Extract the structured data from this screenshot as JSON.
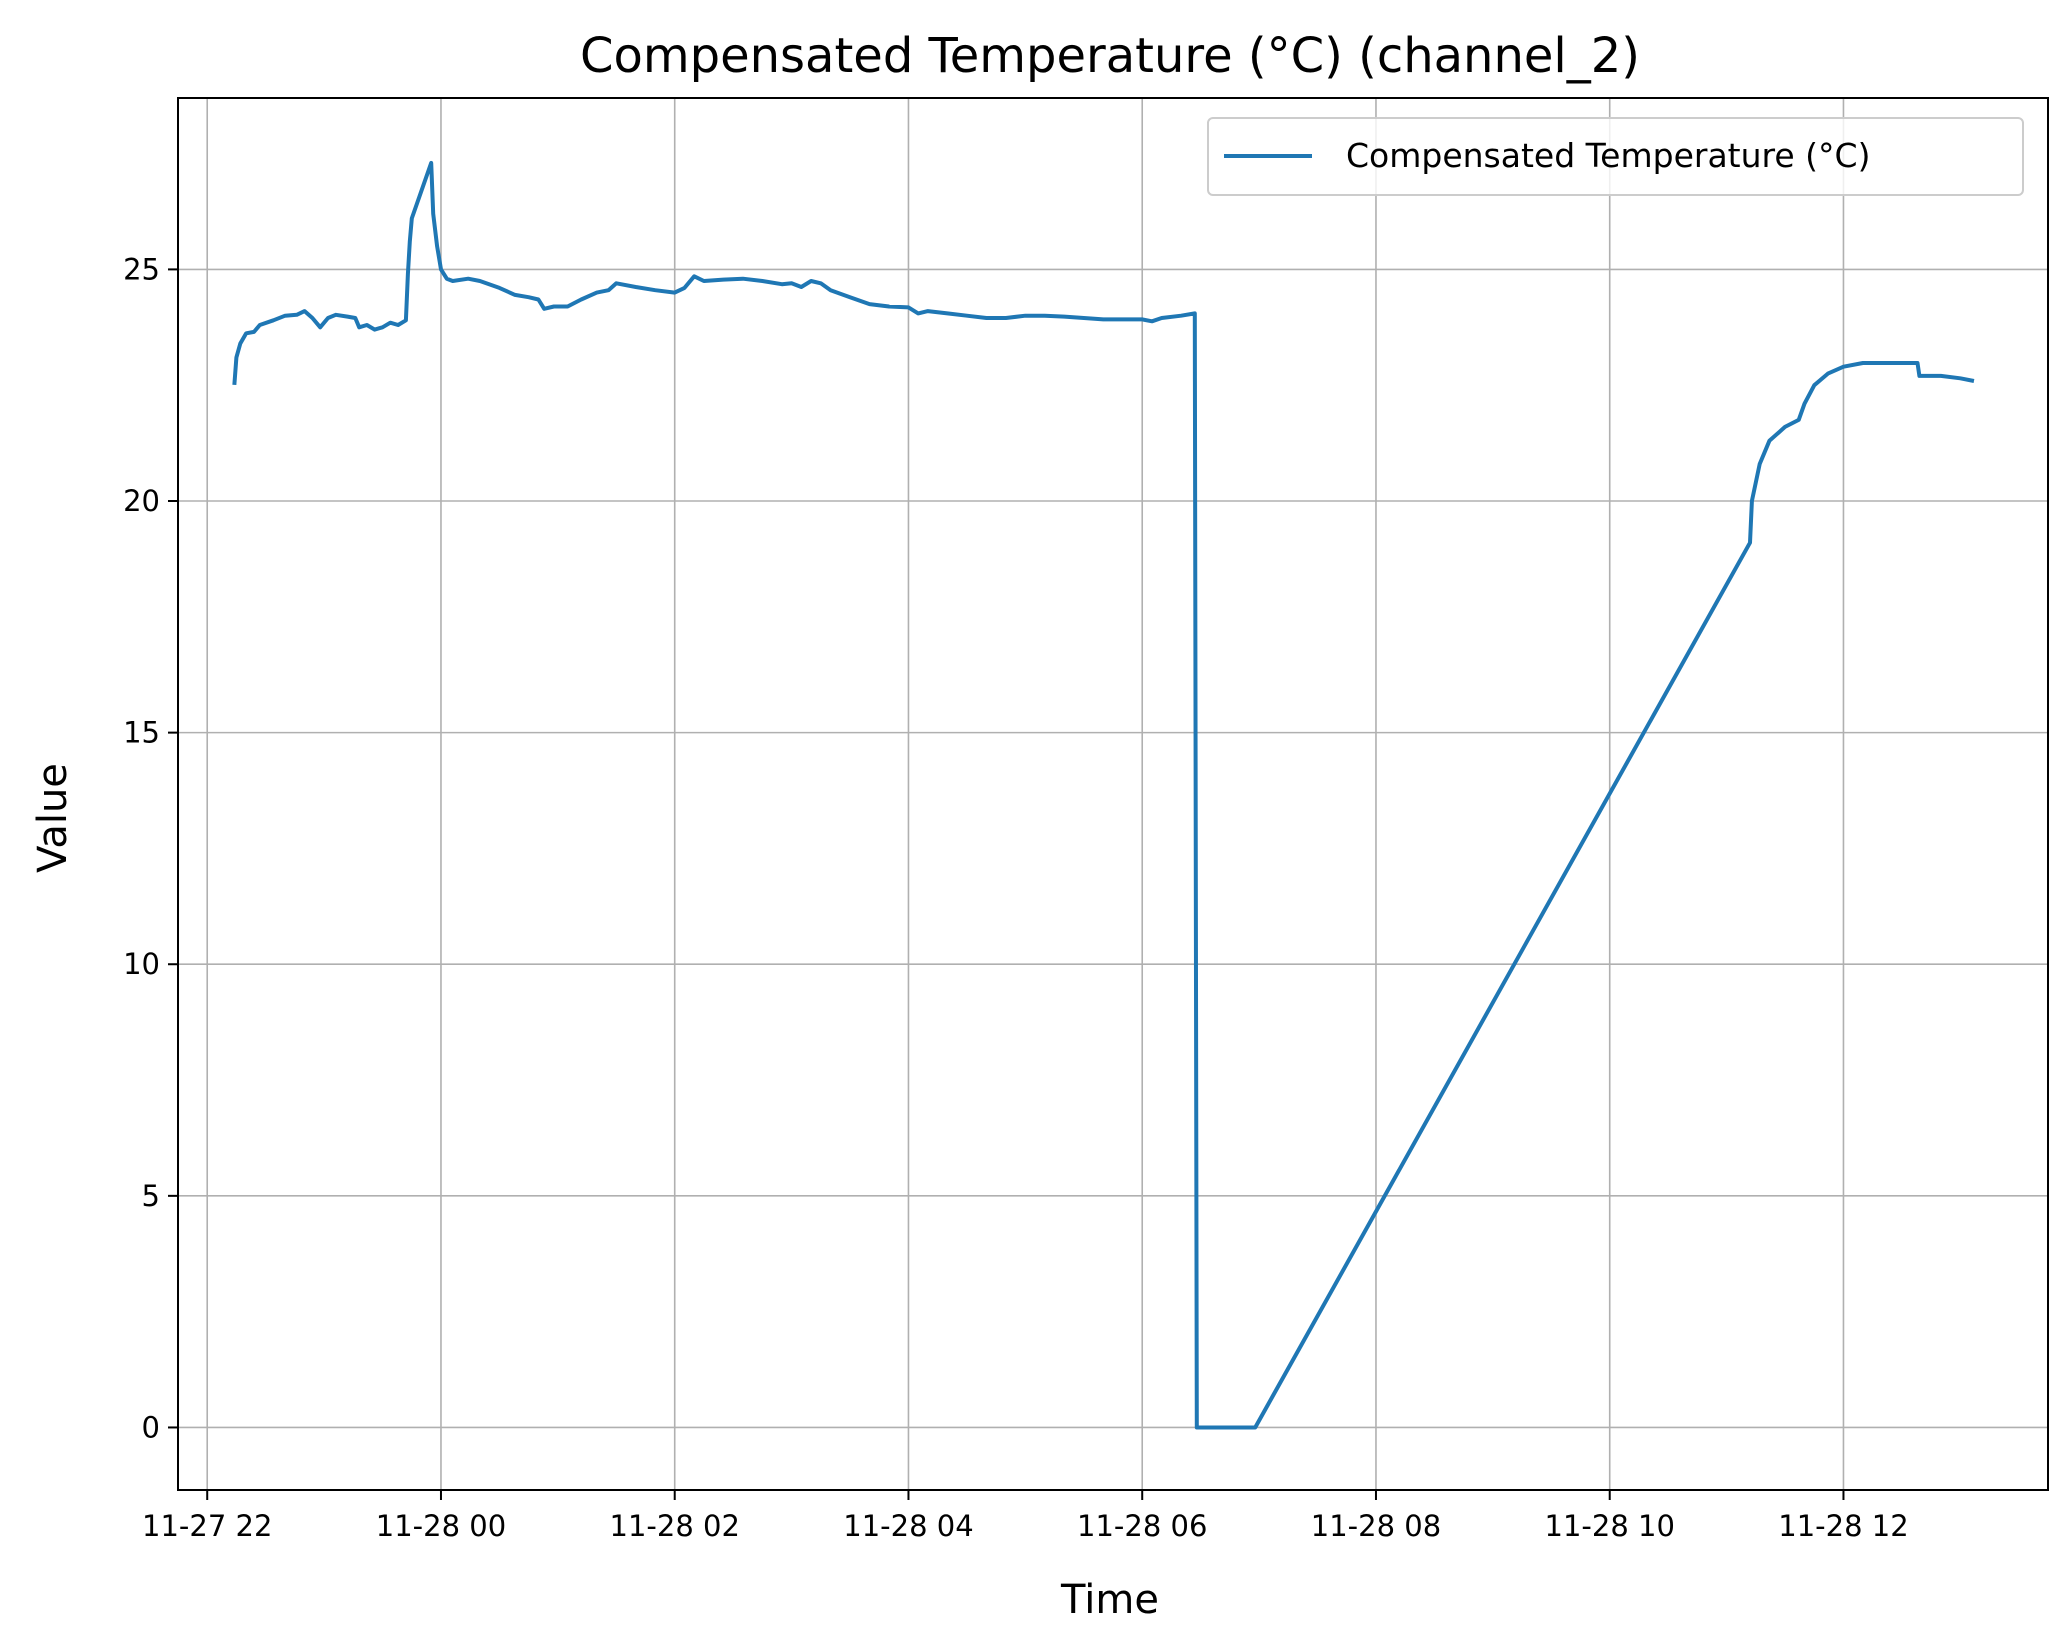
{
  "chart_data": {
    "type": "line",
    "title": "Compensated Temperature (°C) (channel_2)",
    "xlabel": "Time",
    "ylabel": "Value",
    "xlim": [
      "2024-11-27 21:45",
      "2024-11-28 13:45"
    ],
    "ylim": [
      -1.35,
      28.7
    ],
    "x_ticks": [
      {
        "value": "2024-11-27 22:00",
        "label": "11-27 22"
      },
      {
        "value": "2024-11-28 00:00",
        "label": "11-28 00"
      },
      {
        "value": "2024-11-28 02:00",
        "label": "11-28 02"
      },
      {
        "value": "2024-11-28 04:00",
        "label": "11-28 04"
      },
      {
        "value": "2024-11-28 06:00",
        "label": "11-28 06"
      },
      {
        "value": "2024-11-28 08:00",
        "label": "11-28 08"
      },
      {
        "value": "2024-11-28 10:00",
        "label": "11-28 10"
      },
      {
        "value": "2024-11-28 12:00",
        "label": "11-28 12"
      }
    ],
    "y_ticks": [
      {
        "value": 0,
        "label": "0"
      },
      {
        "value": 5,
        "label": "5"
      },
      {
        "value": 10,
        "label": "10"
      },
      {
        "value": 15,
        "label": "15"
      },
      {
        "value": 20,
        "label": "20"
      },
      {
        "value": 25,
        "label": "25"
      }
    ],
    "grid": true,
    "legend_position": "top-right",
    "series": [
      {
        "name": "Compensated Temperature (°C)",
        "color": "#1f77b4",
        "points": [
          [
            "2024-11-27 22:14",
            22.55
          ],
          [
            "2024-11-27 22:15",
            23.1
          ],
          [
            "2024-11-27 22:17",
            23.4
          ],
          [
            "2024-11-27 22:20",
            23.62
          ],
          [
            "2024-11-27 22:24",
            23.65
          ],
          [
            "2024-11-27 22:27",
            23.8
          ],
          [
            "2024-11-27 22:34",
            23.9
          ],
          [
            "2024-11-27 22:40",
            24.0
          ],
          [
            "2024-11-27 22:46",
            24.02
          ],
          [
            "2024-11-27 22:50",
            24.1
          ],
          [
            "2024-11-27 22:54",
            23.95
          ],
          [
            "2024-11-27 22:58",
            23.75
          ],
          [
            "2024-11-27 23:02",
            23.95
          ],
          [
            "2024-11-27 23:06",
            24.02
          ],
          [
            "2024-11-27 23:12",
            23.98
          ],
          [
            "2024-11-27 23:16",
            23.95
          ],
          [
            "2024-11-27 23:18",
            23.75
          ],
          [
            "2024-11-27 23:22",
            23.8
          ],
          [
            "2024-11-27 23:26",
            23.7
          ],
          [
            "2024-11-27 23:30",
            23.75
          ],
          [
            "2024-11-27 23:34",
            23.85
          ],
          [
            "2024-11-27 23:38",
            23.8
          ],
          [
            "2024-11-27 23:42",
            23.9
          ],
          [
            "2024-11-27 23:43",
            24.9
          ],
          [
            "2024-11-27 23:44",
            25.6
          ],
          [
            "2024-11-27 23:45",
            26.1
          ],
          [
            "2024-11-27 23:55",
            27.3
          ],
          [
            "2024-11-27 23:56",
            26.2
          ],
          [
            "2024-11-27 23:58",
            25.5
          ],
          [
            "2024-11-28 00:00",
            25.0
          ],
          [
            "2024-11-28 00:03",
            24.8
          ],
          [
            "2024-11-28 00:06",
            24.75
          ],
          [
            "2024-11-28 00:14",
            24.8
          ],
          [
            "2024-11-28 00:20",
            24.75
          ],
          [
            "2024-11-28 00:30",
            24.6
          ],
          [
            "2024-11-28 00:38",
            24.45
          ],
          [
            "2024-11-28 00:45",
            24.4
          ],
          [
            "2024-11-28 00:50",
            24.35
          ],
          [
            "2024-11-28 00:53",
            24.15
          ],
          [
            "2024-11-28 00:58",
            24.2
          ],
          [
            "2024-11-28 01:05",
            24.2
          ],
          [
            "2024-11-28 01:12",
            24.35
          ],
          [
            "2024-11-28 01:20",
            24.5
          ],
          [
            "2024-11-28 01:26",
            24.55
          ],
          [
            "2024-11-28 01:30",
            24.7
          ],
          [
            "2024-11-28 01:40",
            24.62
          ],
          [
            "2024-11-28 01:50",
            24.55
          ],
          [
            "2024-11-28 02:00",
            24.5
          ],
          [
            "2024-11-28 02:05",
            24.6
          ],
          [
            "2024-11-28 02:10",
            24.85
          ],
          [
            "2024-11-28 02:15",
            24.75
          ],
          [
            "2024-11-28 02:25",
            24.78
          ],
          [
            "2024-11-28 02:35",
            24.8
          ],
          [
            "2024-11-28 02:45",
            24.75
          ],
          [
            "2024-11-28 02:55",
            24.68
          ],
          [
            "2024-11-28 03:00",
            24.7
          ],
          [
            "2024-11-28 03:05",
            24.62
          ],
          [
            "2024-11-28 03:10",
            24.75
          ],
          [
            "2024-11-28 03:15",
            24.7
          ],
          [
            "2024-11-28 03:20",
            24.55
          ],
          [
            "2024-11-28 03:30",
            24.4
          ],
          [
            "2024-11-28 03:40",
            24.25
          ],
          [
            "2024-11-28 03:50",
            24.2
          ],
          [
            "2024-11-28 04:00",
            24.18
          ],
          [
            "2024-11-28 04:05",
            24.05
          ],
          [
            "2024-11-28 04:10",
            24.1
          ],
          [
            "2024-11-28 04:20",
            24.05
          ],
          [
            "2024-11-28 04:30",
            24.0
          ],
          [
            "2024-11-28 04:40",
            23.95
          ],
          [
            "2024-11-28 04:50",
            23.95
          ],
          [
            "2024-11-28 05:00",
            24.0
          ],
          [
            "2024-11-28 05:10",
            24.0
          ],
          [
            "2024-11-28 05:20",
            23.98
          ],
          [
            "2024-11-28 05:30",
            23.95
          ],
          [
            "2024-11-28 05:40",
            23.92
          ],
          [
            "2024-11-28 05:50",
            23.92
          ],
          [
            "2024-11-28 06:00",
            23.92
          ],
          [
            "2024-11-28 06:05",
            23.88
          ],
          [
            "2024-11-28 06:10",
            23.95
          ],
          [
            "2024-11-28 06:20",
            24.0
          ],
          [
            "2024-11-28 06:27",
            24.05
          ],
          [
            "2024-11-28 06:28",
            0.0
          ],
          [
            "2024-11-28 06:58",
            0.0
          ],
          [
            "2024-11-28 11:12",
            19.1
          ],
          [
            "2024-11-28 11:13",
            20.0
          ],
          [
            "2024-11-28 11:17",
            20.8
          ],
          [
            "2024-11-28 11:22",
            21.3
          ],
          [
            "2024-11-28 11:30",
            21.6
          ],
          [
            "2024-11-28 11:37",
            21.75
          ],
          [
            "2024-11-28 11:40",
            22.1
          ],
          [
            "2024-11-28 11:45",
            22.5
          ],
          [
            "2024-11-28 11:52",
            22.75
          ],
          [
            "2024-11-28 12:00",
            22.9
          ],
          [
            "2024-11-28 12:10",
            22.98
          ],
          [
            "2024-11-28 12:20",
            22.98
          ],
          [
            "2024-11-28 12:30",
            22.98
          ],
          [
            "2024-11-28 12:38",
            22.98
          ],
          [
            "2024-11-28 12:39",
            22.7
          ],
          [
            "2024-11-28 12:50",
            22.7
          ],
          [
            "2024-11-28 13:00",
            22.65
          ],
          [
            "2024-11-28 13:06",
            22.6
          ]
        ]
      }
    ]
  }
}
